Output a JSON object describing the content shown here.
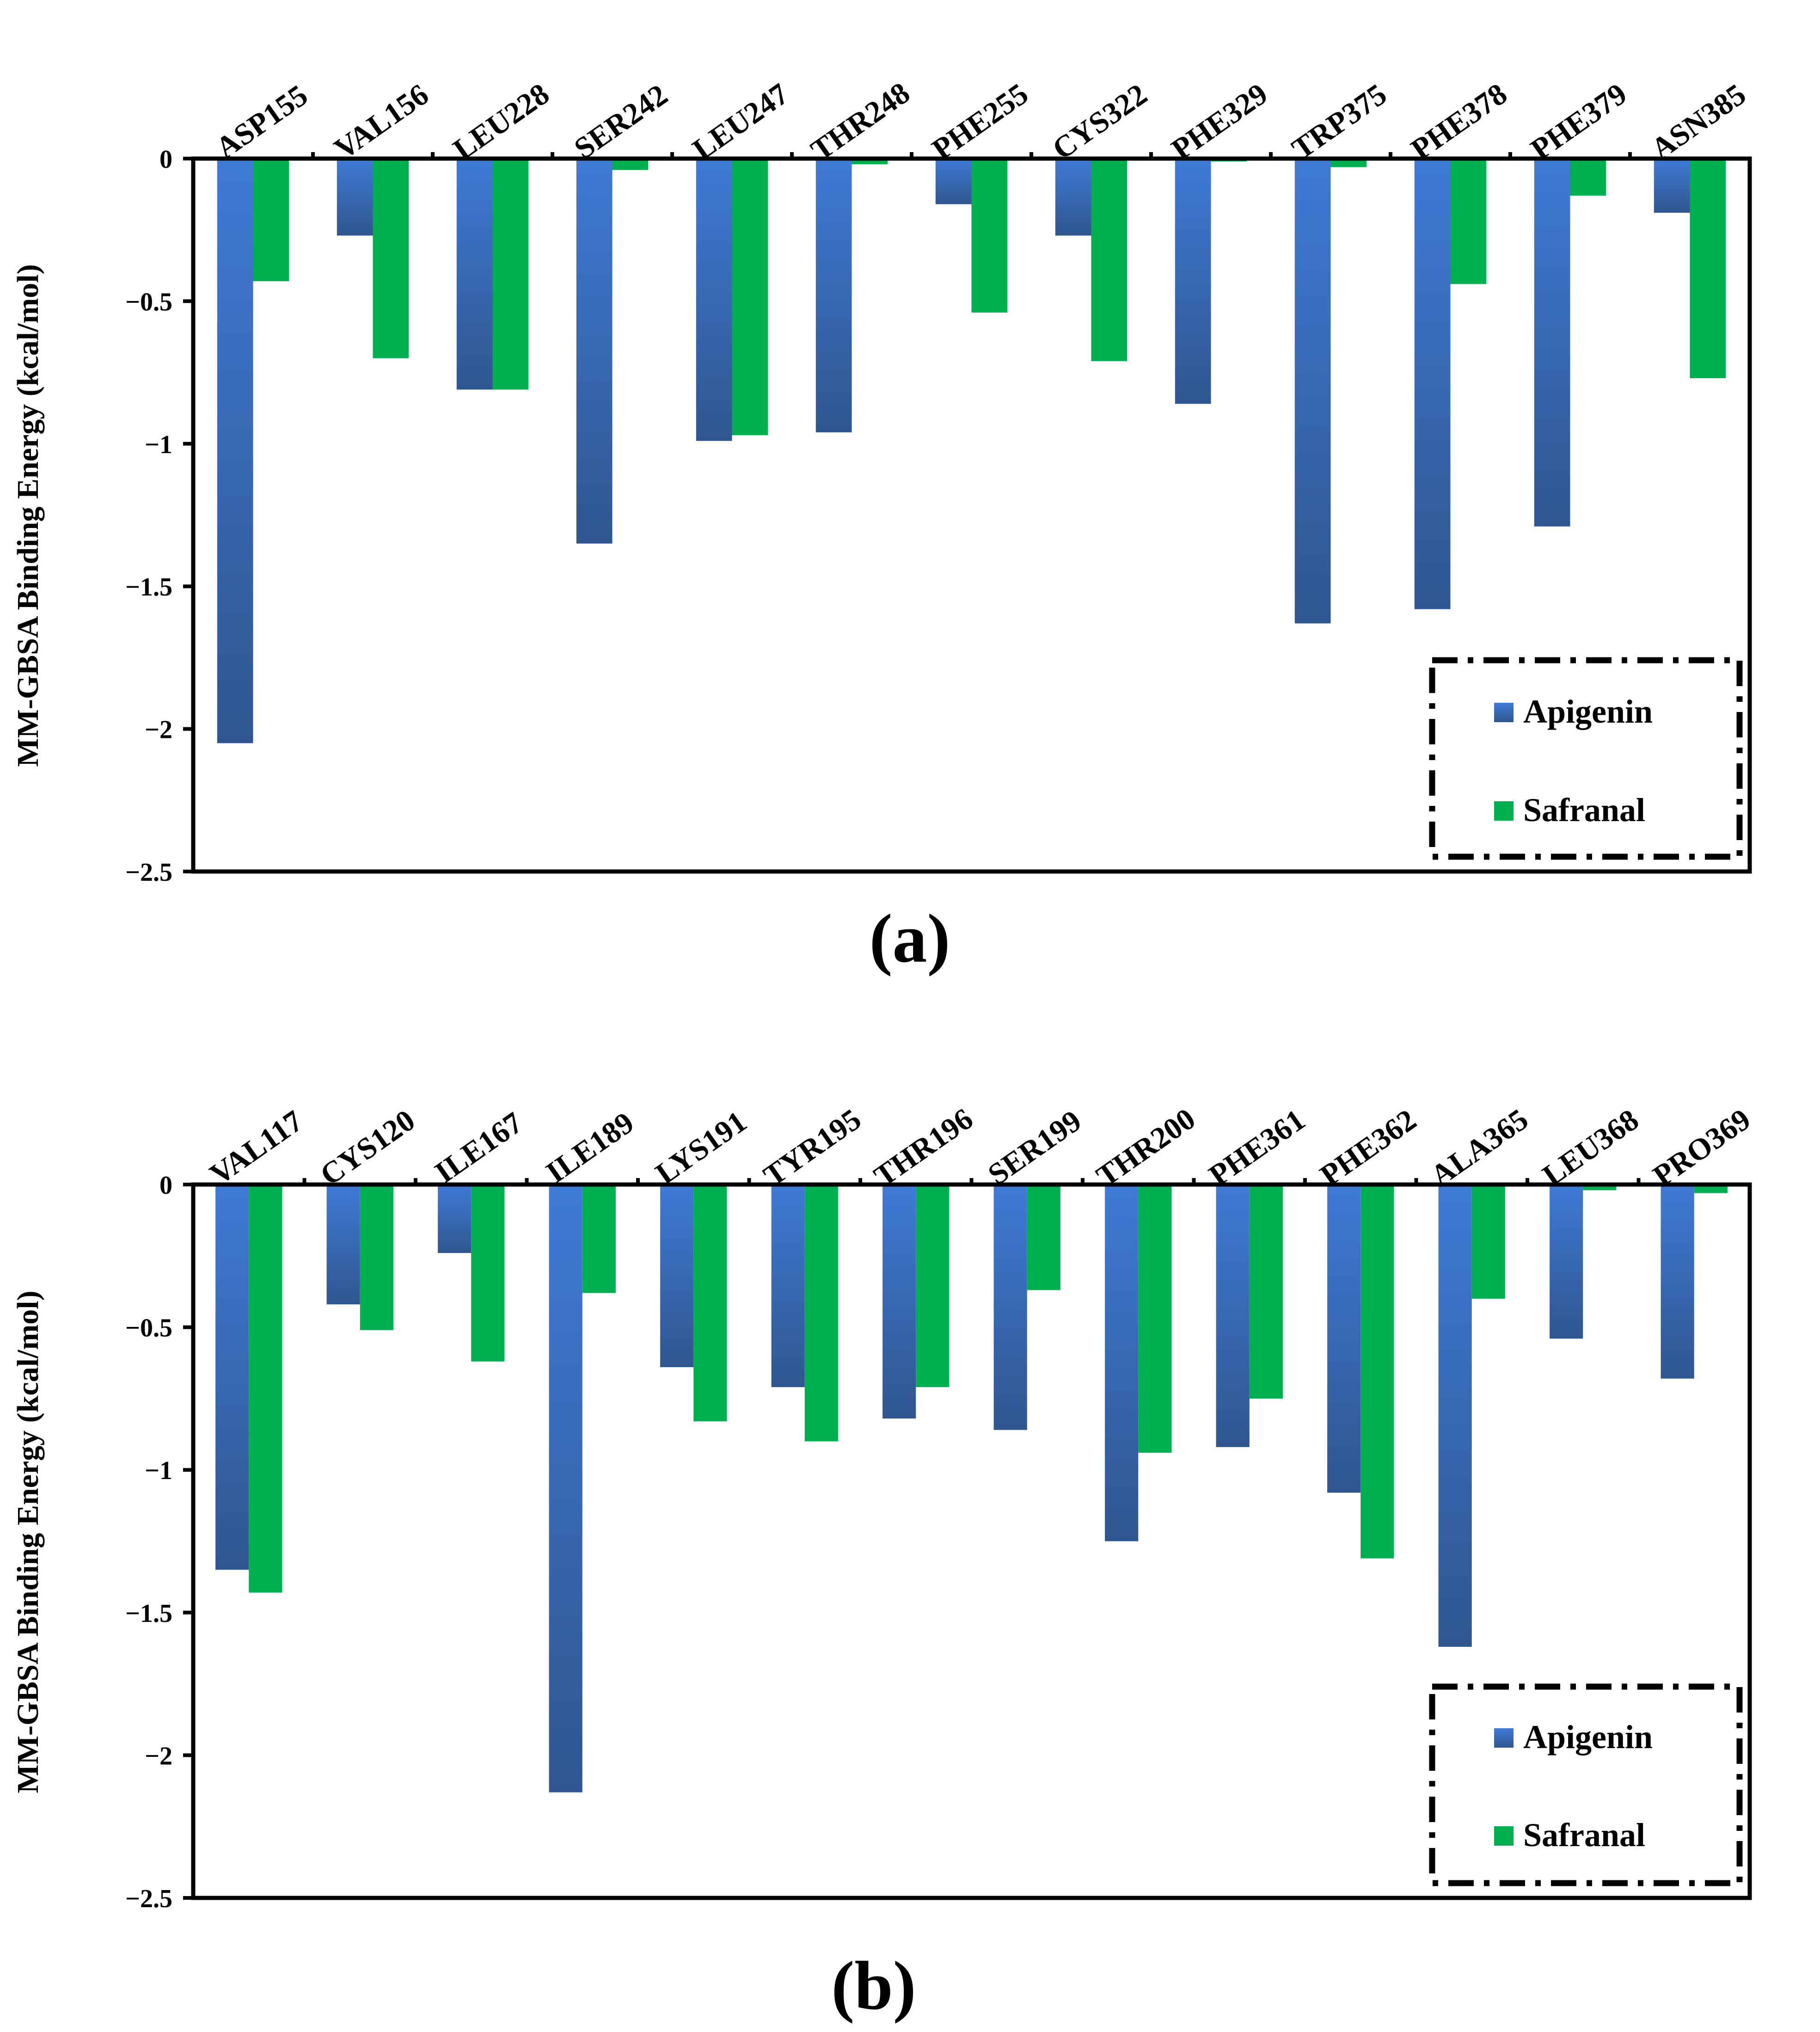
{
  "colors": {
    "apigenin": "#3f7ad6",
    "apigenin_dark": "#2f568f",
    "safranal": "#00b050",
    "axis": "#000000",
    "background": "#ffffff"
  },
  "chart_data": [
    {
      "panel": "(a)",
      "type": "bar",
      "ylabel": "MM-GBSA Binding Energy (kcal/mol)",
      "ylim": [
        -2.5,
        0
      ],
      "yticks": [
        0,
        -0.5,
        -1,
        -1.5,
        -2,
        -2.5
      ],
      "ytick_labels": [
        "0",
        "−0.5",
        "−1",
        "−1.5",
        "−2",
        "−2.5"
      ],
      "legend_position": "bottom-right",
      "categories": [
        "ASP155",
        "VAL156",
        "LEU228",
        "SER242",
        "LEU247",
        "THR248",
        "PHE255",
        "CYS322",
        "PHE329",
        "TRP375",
        "PHE378",
        "PHE379",
        "ASN385"
      ],
      "series": [
        {
          "name": "Apigenin",
          "values": [
            -2.05,
            -0.27,
            -0.81,
            -1.35,
            -0.99,
            -0.96,
            -0.16,
            -0.27,
            -0.86,
            -1.63,
            -1.58,
            -1.29,
            -0.19
          ]
        },
        {
          "name": "Safranal",
          "values": [
            -0.43,
            -0.7,
            -0.81,
            -0.04,
            -0.97,
            -0.02,
            -0.54,
            -0.71,
            -0.01,
            -0.03,
            -0.44,
            -0.13,
            -0.77
          ]
        }
      ]
    },
    {
      "panel": "(b)",
      "type": "bar",
      "ylabel": "MM-GBSA Binding Energy (kcal/mol)",
      "ylim": [
        -2.5,
        0
      ],
      "yticks": [
        0,
        -0.5,
        -1,
        -1.5,
        -2,
        -2.5
      ],
      "ytick_labels": [
        "0",
        "−0.5",
        "−1",
        "−1.5",
        "−2",
        "−2.5"
      ],
      "legend_position": "bottom-right",
      "categories": [
        "VAL117",
        "CYS120",
        "ILE167",
        "ILE189",
        "LYS191",
        "TYR195",
        "THR196",
        "SER199",
        "THR200",
        "PHE361",
        "PHE362",
        "ALA365",
        "LEU368",
        "PRO369"
      ],
      "series": [
        {
          "name": "Apigenin",
          "values": [
            -1.35,
            -0.42,
            -0.24,
            -2.13,
            -0.64,
            -0.71,
            -0.82,
            -0.86,
            -1.25,
            -0.92,
            -1.08,
            -1.62,
            -0.54,
            -0.68
          ]
        },
        {
          "name": "Safranal",
          "values": [
            -1.43,
            -0.51,
            -0.62,
            -0.38,
            -0.83,
            -0.9,
            -0.71,
            -0.37,
            -0.94,
            -0.75,
            -1.31,
            -0.4,
            -0.02,
            -0.03
          ]
        }
      ]
    }
  ]
}
